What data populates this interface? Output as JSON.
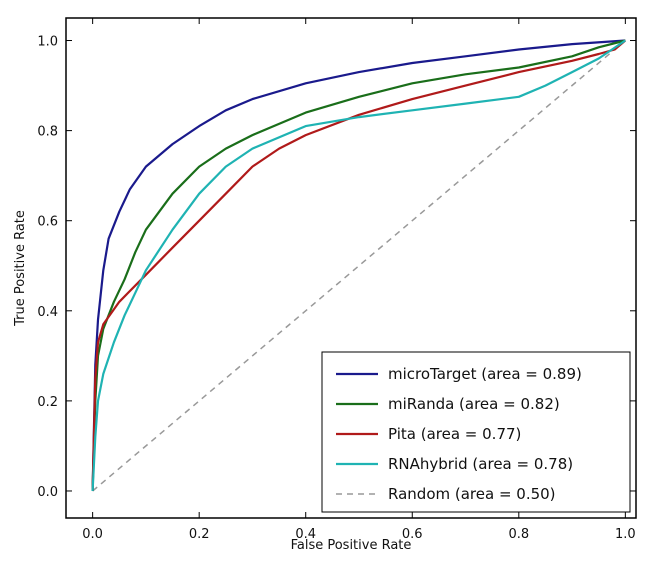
{
  "chart_data": {
    "type": "line",
    "title": "",
    "xlabel": "False Positive Rate",
    "ylabel": "True Positive Rate",
    "xlim": [
      -0.05,
      1.02
    ],
    "ylim": [
      -0.06,
      1.05
    ],
    "xticks": [
      "0.0",
      "0.2",
      "0.4",
      "0.6",
      "0.8",
      "1.0"
    ],
    "yticks": [
      "0.0",
      "0.2",
      "0.4",
      "0.6",
      "0.8",
      "1.0"
    ],
    "grid": false,
    "legend_position": "lower-right",
    "series": [
      {
        "name": "microTarget (area = 0.89)",
        "color": "#1a1a8c",
        "style": "solid",
        "x": [
          0.0,
          0.005,
          0.01,
          0.02,
          0.03,
          0.05,
          0.07,
          0.1,
          0.15,
          0.2,
          0.25,
          0.3,
          0.4,
          0.5,
          0.6,
          0.7,
          0.8,
          0.9,
          1.0
        ],
        "y": [
          0.0,
          0.28,
          0.38,
          0.49,
          0.56,
          0.62,
          0.67,
          0.72,
          0.77,
          0.81,
          0.845,
          0.87,
          0.905,
          0.93,
          0.95,
          0.965,
          0.98,
          0.992,
          1.0
        ]
      },
      {
        "name": "miRanda (area = 0.82)",
        "color": "#1a6e1a",
        "style": "solid",
        "x": [
          0.0,
          0.005,
          0.01,
          0.02,
          0.04,
          0.06,
          0.08,
          0.1,
          0.15,
          0.2,
          0.25,
          0.3,
          0.4,
          0.5,
          0.6,
          0.7,
          0.8,
          0.9,
          0.95,
          1.0
        ],
        "y": [
          0.0,
          0.2,
          0.3,
          0.36,
          0.42,
          0.47,
          0.53,
          0.58,
          0.66,
          0.72,
          0.76,
          0.79,
          0.84,
          0.875,
          0.905,
          0.925,
          0.94,
          0.965,
          0.985,
          1.0
        ]
      },
      {
        "name": "Pita (area = 0.77)",
        "color": "#b01a1a",
        "style": "solid",
        "x": [
          0.0,
          0.005,
          0.01,
          0.02,
          0.05,
          0.1,
          0.15,
          0.2,
          0.25,
          0.3,
          0.35,
          0.4,
          0.5,
          0.6,
          0.7,
          0.8,
          0.9,
          0.95,
          0.98,
          1.0
        ],
        "y": [
          0.0,
          0.25,
          0.33,
          0.37,
          0.42,
          0.48,
          0.54,
          0.6,
          0.66,
          0.72,
          0.76,
          0.79,
          0.835,
          0.87,
          0.9,
          0.93,
          0.955,
          0.97,
          0.98,
          1.0
        ]
      },
      {
        "name": "RNAhybrid (area = 0.78)",
        "color": "#1fb3b3",
        "style": "solid",
        "x": [
          0.0,
          0.005,
          0.01,
          0.02,
          0.04,
          0.06,
          0.08,
          0.1,
          0.15,
          0.2,
          0.25,
          0.3,
          0.4,
          0.5,
          0.6,
          0.7,
          0.8,
          0.85,
          0.9,
          0.95,
          1.0
        ],
        "y": [
          0.0,
          0.12,
          0.2,
          0.26,
          0.33,
          0.39,
          0.44,
          0.49,
          0.58,
          0.66,
          0.72,
          0.76,
          0.81,
          0.83,
          0.845,
          0.86,
          0.875,
          0.9,
          0.93,
          0.96,
          1.0
        ]
      },
      {
        "name": "Random (area = 0.50)",
        "color": "#999999",
        "style": "dashed",
        "x": [
          0.0,
          1.0
        ],
        "y": [
          0.0,
          1.0
        ]
      }
    ]
  }
}
